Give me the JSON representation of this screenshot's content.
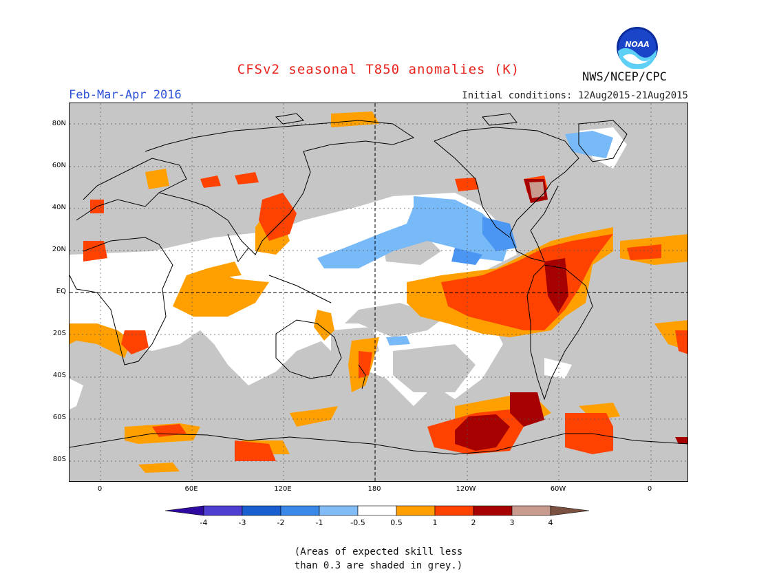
{
  "header": {
    "title": "CFSv2 seasonal T850 anomalies (K)",
    "season": "Feb-Mar-Apr 2016",
    "initial_conditions": "Initial conditions: 12Aug2015-21Aug2015",
    "agency": "NWS/NCEP/CPC",
    "logo_text": "NOAA"
  },
  "map": {
    "lat_ticks": [
      "80N",
      "60N",
      "40N",
      "20N",
      "EQ",
      "20S",
      "40S",
      "60S",
      "80S"
    ],
    "lon_ticks": [
      "0",
      "60E",
      "120E",
      "180",
      "120W",
      "60W",
      "0"
    ],
    "colors": {
      "ocean_grey": "#c6c6c6",
      "no_signal": "#ffffff",
      "pos_0_5_1": "#ffa000",
      "pos_1_2": "#ff4200",
      "pos_2_3": "#a60000",
      "pos_3_4": "#c99b8f",
      "neg_0_5_1": "#78b9f7",
      "neg_1_2": "#4b96f3"
    }
  },
  "legend": {
    "labels": [
      "-4",
      "-3",
      "-2",
      "-1",
      "-0.5",
      "0.5",
      "1",
      "2",
      "3",
      "4"
    ],
    "colors": [
      "#2f0aa0",
      "#4f3fd0",
      "#1a5fd0",
      "#3a88e8",
      "#82bcf6",
      "#ffffff",
      "#ffa000",
      "#ff4200",
      "#a60000",
      "#c99b8f",
      "#7a5040"
    ]
  },
  "footnote": {
    "line1": "(Areas of expected skill less",
    "line2": "than 0.3 are shaded in grey.)"
  }
}
